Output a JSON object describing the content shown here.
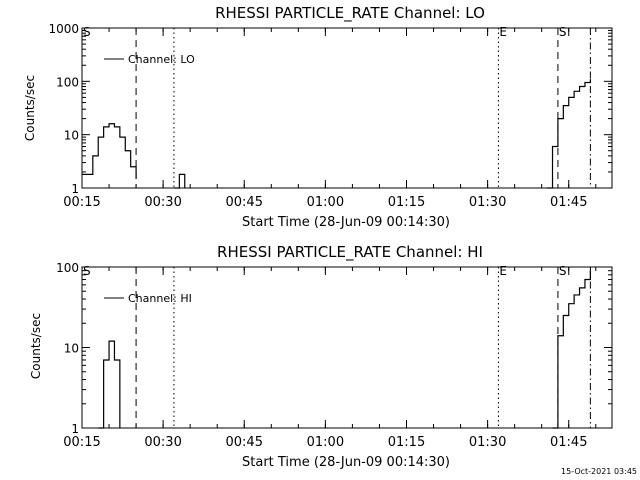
{
  "footer": {
    "timestamp": "15-Oct-2021 03:45"
  },
  "chart_data": [
    {
      "type": "line",
      "title": "RHESSI PARTICLE_RATE Channel: LO",
      "xlabel": "Start Time (28-Jun-09 00:14:30)",
      "ylabel": "Counts/sec",
      "yscale": "log",
      "ylim": [
        1,
        1000
      ],
      "xlim": [
        "00:15",
        "01:53"
      ],
      "x_ticks": [
        "00:15",
        "00:30",
        "00:45",
        "01:00",
        "01:15",
        "01:30",
        "01:45"
      ],
      "y_ticks": [
        "1",
        "10",
        "100",
        "1000"
      ],
      "legend": {
        "label": "Channel: LO",
        "position": "top-left"
      },
      "markers": [
        {
          "label": "S",
          "time": "00:15"
        },
        {
          "label": "E",
          "time": "01:32"
        },
        {
          "label": "S",
          "time": "01:43"
        }
      ],
      "vertical_lines": [
        {
          "time": "00:25",
          "style": "dashed"
        },
        {
          "time": "00:32",
          "style": "dotted"
        },
        {
          "time": "01:32",
          "style": "dotted"
        },
        {
          "time": "01:43",
          "style": "dashed"
        },
        {
          "time": "01:49",
          "style": "dashdot"
        }
      ],
      "series": [
        {
          "name": "Channel: LO",
          "segments": [
            {
              "x": [
                "00:15",
                "00:16",
                "00:17",
                "00:18",
                "00:19",
                "00:20",
                "00:21",
                "00:22",
                "00:23",
                "00:24",
                "00:25"
              ],
              "values": [
                1.8,
                1.8,
                4,
                9,
                14,
                16,
                14,
                9,
                5,
                2.5,
                1.5
              ]
            },
            {
              "x": [
                "00:32",
                "00:33",
                "00:34"
              ],
              "values": [
                1,
                1.8,
                1
              ]
            },
            {
              "x": [
                "01:41",
                "01:42",
                "01:43",
                "01:44",
                "01:45",
                "01:46",
                "01:47",
                "01:48",
                "01:49"
              ],
              "values": [
                1,
                6,
                20,
                35,
                50,
                65,
                80,
                95,
                110
              ]
            }
          ]
        }
      ]
    },
    {
      "type": "line",
      "title": "RHESSI PARTICLE_RATE Channel: HI",
      "xlabel": "Start Time (28-Jun-09 00:14:30)",
      "ylabel": "Counts/sec",
      "yscale": "log",
      "ylim": [
        1,
        100
      ],
      "xlim": [
        "00:15",
        "01:53"
      ],
      "x_ticks": [
        "00:15",
        "00:30",
        "00:45",
        "01:00",
        "01:15",
        "01:30",
        "01:45"
      ],
      "y_ticks": [
        "1",
        "10",
        "100"
      ],
      "legend": {
        "label": "Channel: HI",
        "position": "top-left"
      },
      "markers": [
        {
          "label": "S",
          "time": "00:15"
        },
        {
          "label": "E",
          "time": "01:32"
        },
        {
          "label": "S",
          "time": "01:43"
        }
      ],
      "vertical_lines": [
        {
          "time": "00:25",
          "style": "dashed"
        },
        {
          "time": "00:32",
          "style": "dotted"
        },
        {
          "time": "01:32",
          "style": "dotted"
        },
        {
          "time": "01:43",
          "style": "dashed"
        },
        {
          "time": "01:49",
          "style": "dashdot"
        }
      ],
      "series": [
        {
          "name": "Channel: HI",
          "segments": [
            {
              "x": [
                "00:18",
                "00:19",
                "00:20",
                "00:21",
                "00:22"
              ],
              "values": [
                1,
                7,
                12,
                7,
                1
              ]
            },
            {
              "x": [
                "01:42",
                "01:43",
                "01:44",
                "01:45",
                "01:46",
                "01:47",
                "01:48",
                "01:49"
              ],
              "values": [
                1,
                14,
                25,
                35,
                45,
                55,
                70,
                90
              ]
            }
          ]
        }
      ]
    }
  ]
}
